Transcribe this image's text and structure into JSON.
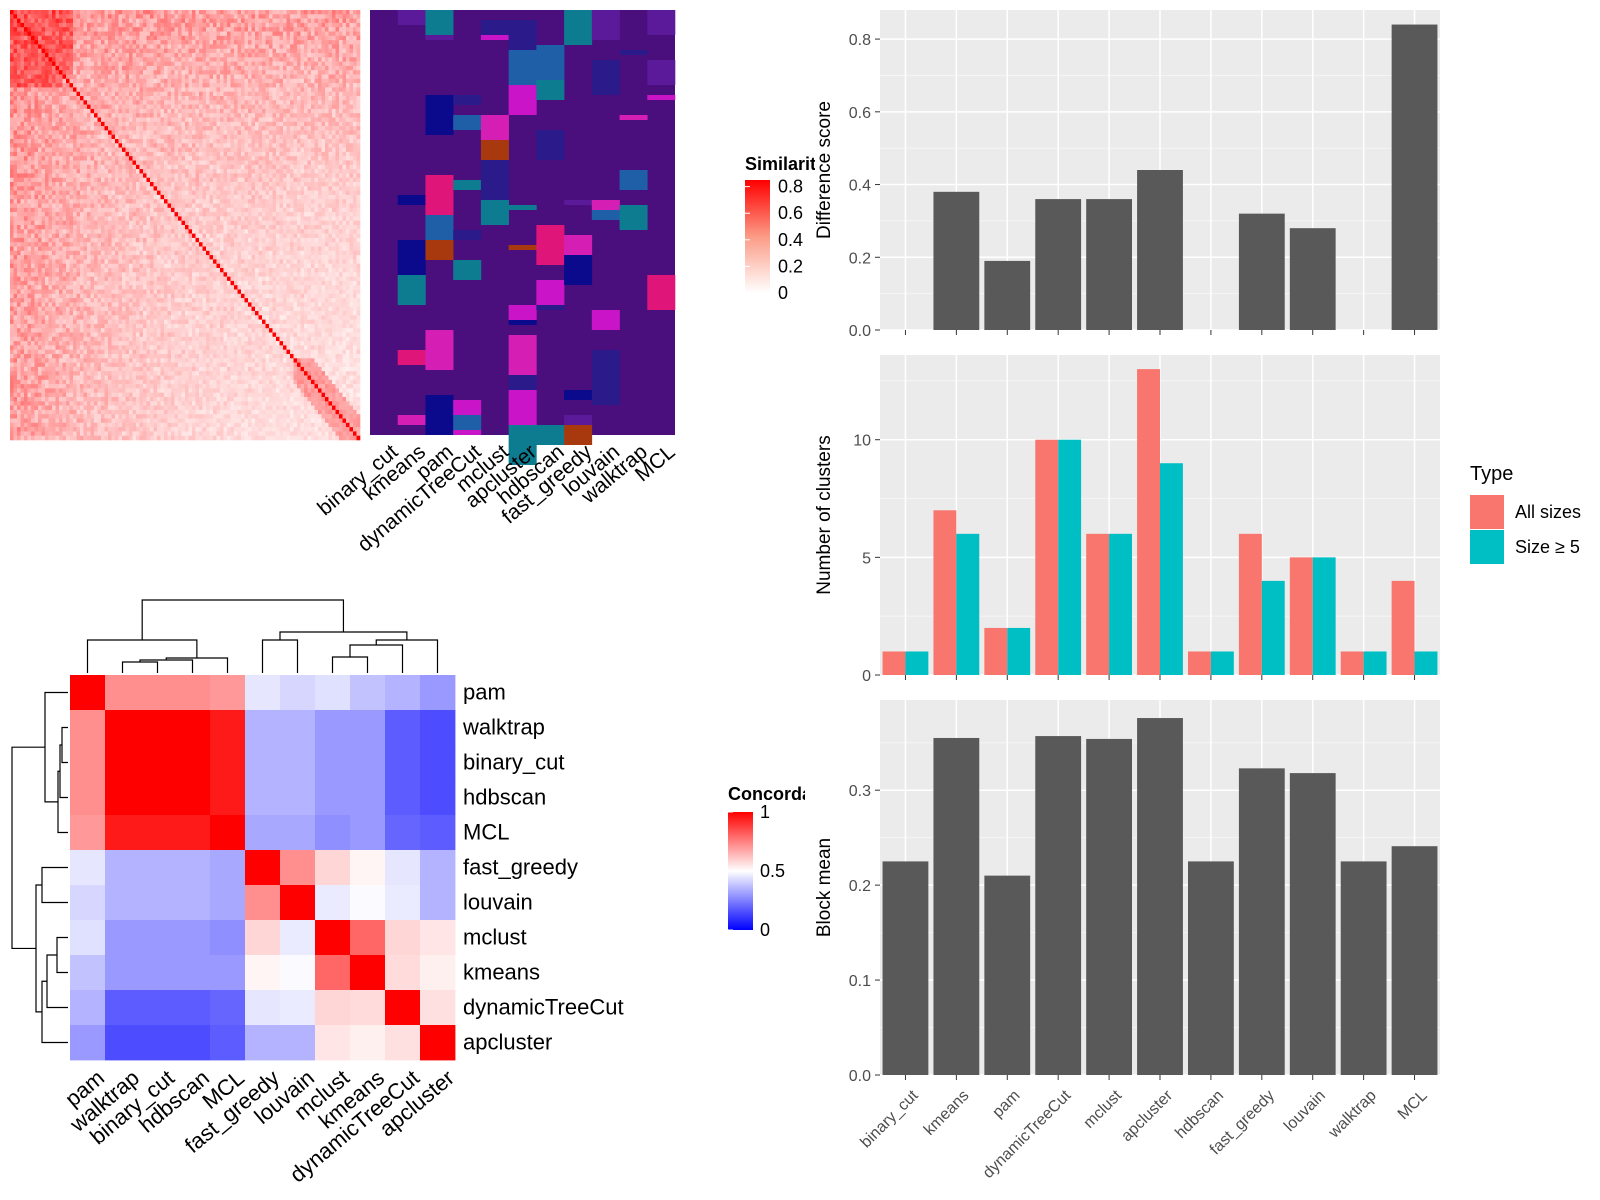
{
  "heatmap_legend": {
    "title": "Similarity",
    "ticks": [
      "0",
      "0.2",
      "0.4",
      "0.6",
      "0.8"
    ]
  },
  "assignment_labels": [
    "binary_cut",
    "kmeans",
    "pam",
    "dynamicTreeCut",
    "mclust",
    "apcluster",
    "hdbscan",
    "fast_greedy",
    "louvain",
    "walktrap",
    "MCL"
  ],
  "concordance_legend": {
    "title": "Concordance",
    "ticks": [
      "0",
      "0.5",
      "1"
    ]
  },
  "colors": {
    "panel_bg": "#ebebeb",
    "grid": "#ffffff",
    "bar": "#595959",
    "all_sizes": "#f8766d",
    "size_ge_5": "#00bfc4",
    "heat_high": "#ff0000",
    "conc_low": "#0000ff"
  },
  "chart_data": [
    {
      "type": "bar",
      "categories": [
        "binary_cut",
        "kmeans",
        "pam",
        "dynamicTreeCut",
        "mclust",
        "apcluster",
        "hdbscan",
        "fast_greedy",
        "louvain",
        "walktrap",
        "MCL"
      ],
      "values": [
        0,
        0.38,
        0.19,
        0.36,
        0.36,
        0.44,
        0,
        0.32,
        0.28,
        0,
        0.84
      ],
      "ylabel": "Difference score",
      "yticks": [
        "0.0",
        "0.2",
        "0.4",
        "0.6",
        "0.8"
      ],
      "ylim": [
        0,
        0.88
      ],
      "grid": true
    },
    {
      "type": "bar",
      "categories": [
        "binary_cut",
        "kmeans",
        "pam",
        "dynamicTreeCut",
        "mclust",
        "apcluster",
        "hdbscan",
        "fast_greedy",
        "louvain",
        "walktrap",
        "MCL"
      ],
      "series": [
        {
          "name": "All sizes",
          "values": [
            1,
            7,
            2,
            10,
            6,
            13,
            1,
            6,
            5,
            1,
            4
          ]
        },
        {
          "name": "Size ≥ 5",
          "values": [
            1,
            6,
            2,
            10,
            6,
            9,
            1,
            4,
            5,
            1,
            1
          ]
        }
      ],
      "ylabel": "Number of clusters",
      "yticks": [
        "0",
        "5",
        "10"
      ],
      "ylim": [
        0,
        13.6
      ],
      "legend": {
        "title": "Type",
        "position": "right"
      },
      "grid": true
    },
    {
      "type": "bar",
      "categories": [
        "binary_cut",
        "kmeans",
        "pam",
        "dynamicTreeCut",
        "mclust",
        "apcluster",
        "hdbscan",
        "fast_greedy",
        "louvain",
        "walktrap",
        "MCL"
      ],
      "values": [
        0.225,
        0.355,
        0.21,
        0.357,
        0.354,
        0.376,
        0.225,
        0.323,
        0.318,
        0.225,
        0.241
      ],
      "ylabel": "Block mean",
      "yticks": [
        "0.0",
        "0.1",
        "0.2",
        "0.3"
      ],
      "ylim": [
        0,
        0.395
      ],
      "grid": true
    },
    {
      "type": "heatmap",
      "rows": [
        "pam",
        "walktrap",
        "binary_cut",
        "hdbscan",
        "MCL",
        "fast_greedy",
        "louvain",
        "mclust",
        "kmeans",
        "dynamicTreeCut",
        "apcluster"
      ],
      "columns": [
        "pam",
        "walktrap",
        "binary_cut",
        "hdbscan",
        "MCL",
        "fast_greedy",
        "louvain",
        "mclust",
        "kmeans",
        "dynamicTreeCut",
        "apcluster"
      ],
      "values": [
        [
          1,
          0.72,
          0.72,
          0.72,
          0.7,
          0.45,
          0.42,
          0.44,
          0.38,
          0.35,
          0.3
        ],
        [
          0.72,
          1,
          1,
          1,
          0.95,
          0.35,
          0.35,
          0.3,
          0.3,
          0.18,
          0.15
        ],
        [
          0.72,
          1,
          1,
          1,
          0.95,
          0.35,
          0.35,
          0.3,
          0.3,
          0.18,
          0.15
        ],
        [
          0.72,
          1,
          1,
          1,
          0.95,
          0.35,
          0.35,
          0.3,
          0.3,
          0.18,
          0.15
        ],
        [
          0.7,
          0.95,
          0.95,
          0.95,
          1,
          0.33,
          0.33,
          0.28,
          0.3,
          0.2,
          0.18
        ],
        [
          0.45,
          0.35,
          0.35,
          0.35,
          0.33,
          1,
          0.72,
          0.58,
          0.52,
          0.45,
          0.35
        ],
        [
          0.42,
          0.35,
          0.35,
          0.35,
          0.33,
          0.72,
          1,
          0.46,
          0.49,
          0.46,
          0.35
        ],
        [
          0.44,
          0.3,
          0.3,
          0.3,
          0.28,
          0.58,
          0.46,
          1,
          0.8,
          0.58,
          0.55
        ],
        [
          0.38,
          0.3,
          0.3,
          0.3,
          0.3,
          0.52,
          0.49,
          0.8,
          1,
          0.57,
          0.53
        ],
        [
          0.35,
          0.18,
          0.18,
          0.18,
          0.2,
          0.45,
          0.46,
          0.58,
          0.57,
          1,
          0.56
        ],
        [
          0.3,
          0.15,
          0.15,
          0.15,
          0.18,
          0.35,
          0.35,
          0.55,
          0.53,
          0.56,
          1
        ]
      ]
    }
  ]
}
